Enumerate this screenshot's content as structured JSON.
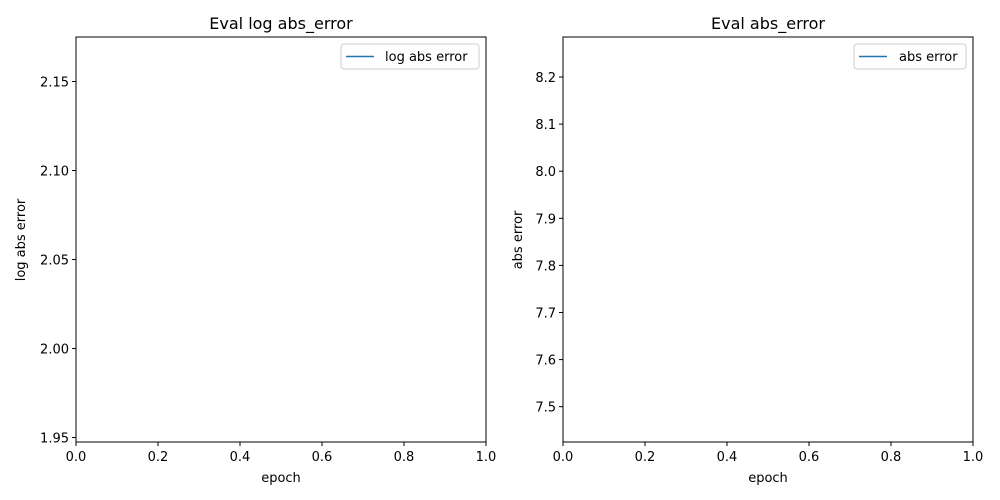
{
  "chart_data": [
    {
      "type": "line",
      "title": "Eval log abs_error",
      "xlabel": "epoch",
      "ylabel": "log abs error",
      "xlim": [
        0.0,
        1.0
      ],
      "ylim": [
        1.9475,
        2.175
      ],
      "x_ticks": [
        "0.0",
        "0.2",
        "0.4",
        "0.6",
        "0.8",
        "1.0"
      ],
      "y_ticks": [
        "1.95",
        "2.00",
        "2.05",
        "2.10",
        "2.15"
      ],
      "grid": false,
      "legend_position": "top-right",
      "series": [
        {
          "name": "log abs error",
          "color": "#1f77b4",
          "x": [],
          "y": []
        }
      ]
    },
    {
      "type": "line",
      "title": "Eval abs_error",
      "xlabel": "epoch",
      "ylabel": "abs error",
      "xlim": [
        0.0,
        1.0
      ],
      "ylim": [
        7.425,
        8.285
      ],
      "x_ticks": [
        "0.0",
        "0.2",
        "0.4",
        "0.6",
        "0.8",
        "1.0"
      ],
      "y_ticks": [
        "7.5",
        "7.6",
        "7.7",
        "7.8",
        "7.9",
        "8.0",
        "8.1",
        "8.2"
      ],
      "grid": false,
      "legend_position": "top-right",
      "series": [
        {
          "name": "abs error",
          "color": "#1f77b4",
          "x": [],
          "y": []
        }
      ]
    }
  ]
}
